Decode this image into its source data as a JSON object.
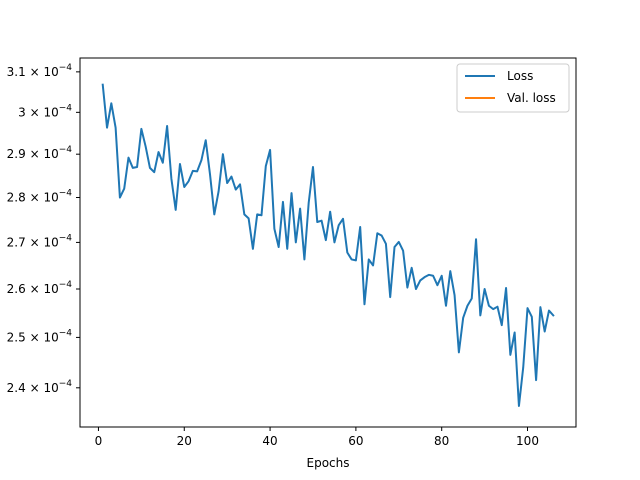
{
  "chart_data": {
    "type": "line",
    "title": "",
    "xlabel": "Epochs",
    "ylabel": "",
    "y_scale": "log",
    "xlim": [
      -4.3,
      111.3
    ],
    "ylim": [
      0.0002325,
      0.0003135
    ],
    "x_ticks": [
      0,
      20,
      40,
      60,
      80,
      100
    ],
    "x_tick_labels": [
      "0",
      "20",
      "40",
      "60",
      "80",
      "100"
    ],
    "y_ticks": [
      0.00024,
      0.00025,
      0.00026,
      0.00027,
      0.00028,
      0.00029,
      0.0003,
      0.00031
    ],
    "y_tick_labels": [
      {
        "mantissa": "2.4",
        "exponent": "−4"
      },
      {
        "mantissa": "2.5",
        "exponent": "−4"
      },
      {
        "mantissa": "2.6",
        "exponent": "−4"
      },
      {
        "mantissa": "2.7",
        "exponent": "−4"
      },
      {
        "mantissa": "2.8",
        "exponent": "−4"
      },
      {
        "mantissa": "2.9",
        "exponent": "−4"
      },
      {
        "mantissa": "3",
        "exponent": "−4"
      },
      {
        "mantissa": "3.1",
        "exponent": "−4"
      }
    ],
    "y_tick_base": "× 10",
    "grid": false,
    "legend_position": "top-right",
    "series": [
      {
        "name": "Loss",
        "color": "#1f77b4",
        "x": [
          1,
          2,
          3,
          4,
          5,
          6,
          7,
          8,
          9,
          10,
          11,
          12,
          13,
          14,
          15,
          16,
          17,
          18,
          19,
          20,
          21,
          22,
          23,
          24,
          25,
          26,
          27,
          28,
          29,
          30,
          31,
          32,
          33,
          34,
          35,
          36,
          37,
          38,
          39,
          40,
          41,
          42,
          43,
          44,
          45,
          46,
          47,
          48,
          49,
          50,
          51,
          52,
          53,
          54,
          55,
          56,
          57,
          58,
          59,
          60,
          61,
          62,
          63,
          64,
          65,
          66,
          67,
          68,
          69,
          70,
          71,
          72,
          73,
          74,
          75,
          76,
          77,
          78,
          79,
          80,
          81,
          82,
          83,
          84,
          85,
          86,
          87,
          88,
          89,
          90,
          91,
          92,
          93,
          94,
          95,
          96,
          97,
          98,
          99,
          100,
          101,
          102,
          103,
          104,
          105,
          106
        ],
        "values": [
          0.0003068,
          0.0002963,
          0.0003022,
          0.0002963,
          0.00028,
          0.000282,
          0.0002892,
          0.0002868,
          0.000287,
          0.000296,
          0.0002918,
          0.0002868,
          0.0002858,
          0.0002905,
          0.000288,
          0.0002967,
          0.0002843,
          0.0002772,
          0.0002877,
          0.0002824,
          0.0002837,
          0.0002861,
          0.000286,
          0.0002886,
          0.0002933,
          0.0002853,
          0.0002762,
          0.0002814,
          0.00029,
          0.0002833,
          0.0002848,
          0.0002818,
          0.000283,
          0.0002762,
          0.0002753,
          0.0002686,
          0.0002762,
          0.000276,
          0.0002872,
          0.000291,
          0.000273,
          0.000269,
          0.000279,
          0.0002686,
          0.000281,
          0.00027,
          0.0002775,
          0.0002663,
          0.0002788,
          0.000287,
          0.0002745,
          0.0002748,
          0.0002705,
          0.0002768,
          0.00027,
          0.0002738,
          0.0002752,
          0.0002678,
          0.0002663,
          0.0002661,
          0.0002734,
          0.0002568,
          0.0002663,
          0.000265,
          0.000272,
          0.0002715,
          0.0002697,
          0.0002583,
          0.000269,
          0.0002701,
          0.0002682,
          0.0002603,
          0.0002645,
          0.00026,
          0.0002618,
          0.0002625,
          0.000263,
          0.0002628,
          0.0002608,
          0.0002628,
          0.0002565,
          0.0002638,
          0.0002587,
          0.000247,
          0.000254,
          0.0002565,
          0.000258,
          0.0002707,
          0.0002545,
          0.00026,
          0.0002565,
          0.0002558,
          0.0002563,
          0.0002525,
          0.0002602,
          0.0002465,
          0.000251,
          0.0002365,
          0.000244,
          0.000256,
          0.0002542,
          0.0002415,
          0.0002562,
          0.0002512,
          0.0002555,
          0.0002545
        ]
      },
      {
        "name": "Val. loss",
        "color": "#ff7f0e",
        "x": [],
        "values": []
      }
    ]
  }
}
